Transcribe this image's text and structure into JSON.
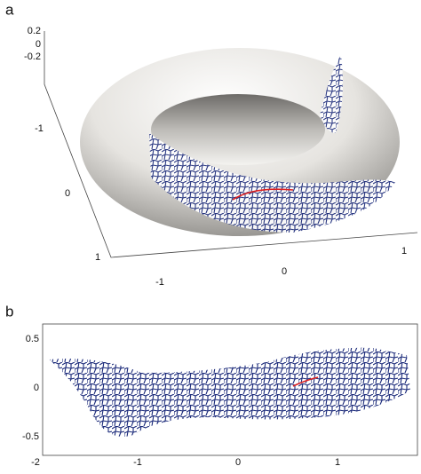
{
  "panels": [
    {
      "label": "a",
      "z_ticks": [
        "0.2",
        "0",
        "-0.2"
      ],
      "y_ticks": [
        "-1",
        "0",
        "1"
      ],
      "x_ticks": [
        "-1",
        "0",
        "1"
      ]
    },
    {
      "label": "b",
      "y_ticks": [
        "0.5",
        "0",
        "-0.5"
      ],
      "x_ticks": [
        "-2",
        "-1",
        "0",
        "1"
      ]
    }
  ]
}
